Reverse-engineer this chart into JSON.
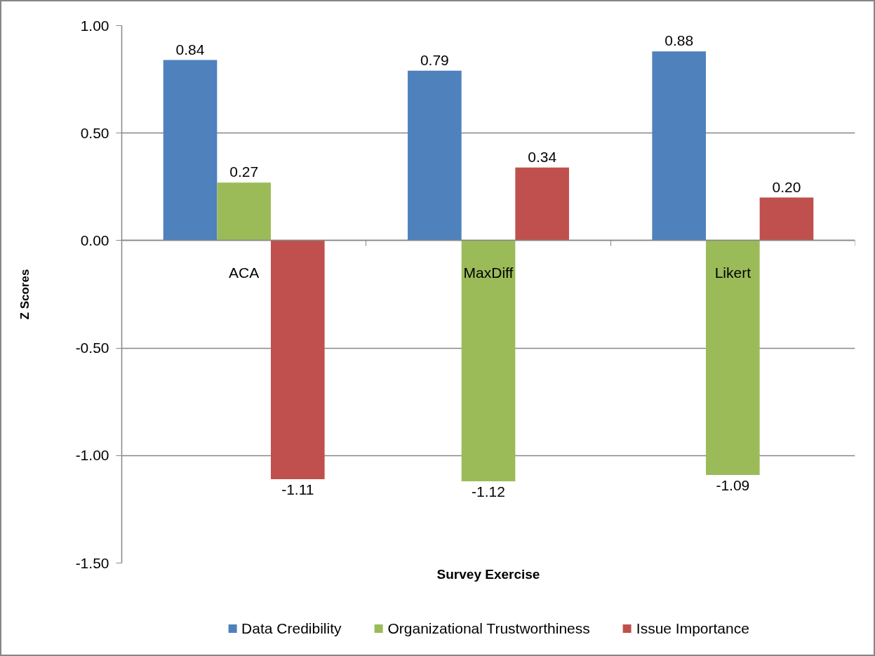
{
  "chart_data": {
    "type": "bar",
    "xlabel": "Survey Exercise",
    "ylabel": "Z Scores",
    "categories": [
      "ACA",
      "MaxDiff",
      "Likert"
    ],
    "series": [
      {
        "name": "Data Credibility",
        "color": "#4f81bd",
        "values": [
          0.84,
          0.79,
          0.88
        ],
        "value_labels": [
          "0.84",
          "0.79",
          "0.88"
        ]
      },
      {
        "name": "Organizational Trustworthiness",
        "color": "#9bbb59",
        "values": [
          0.27,
          -1.12,
          -1.09
        ],
        "value_labels": [
          "0.27",
          "-1.12",
          "-1.09"
        ]
      },
      {
        "name": "Issue Importance",
        "color": "#c0504d",
        "values": [
          -1.11,
          0.34,
          0.2
        ],
        "value_labels": [
          "-1.11",
          "0.34",
          "0.20"
        ]
      }
    ],
    "ylim": [
      -1.5,
      1
    ],
    "yticks": [
      {
        "value": -1.5,
        "label": "-1.50"
      },
      {
        "value": -1,
        "label": "-1.00"
      },
      {
        "value": -0.5,
        "label": "-0.50"
      },
      {
        "value": 0,
        "label": "0.00"
      },
      {
        "value": 0.5,
        "label": "0.50"
      },
      {
        "value": 1,
        "label": "1.00"
      }
    ],
    "grid": "y",
    "legend": "bottom"
  }
}
